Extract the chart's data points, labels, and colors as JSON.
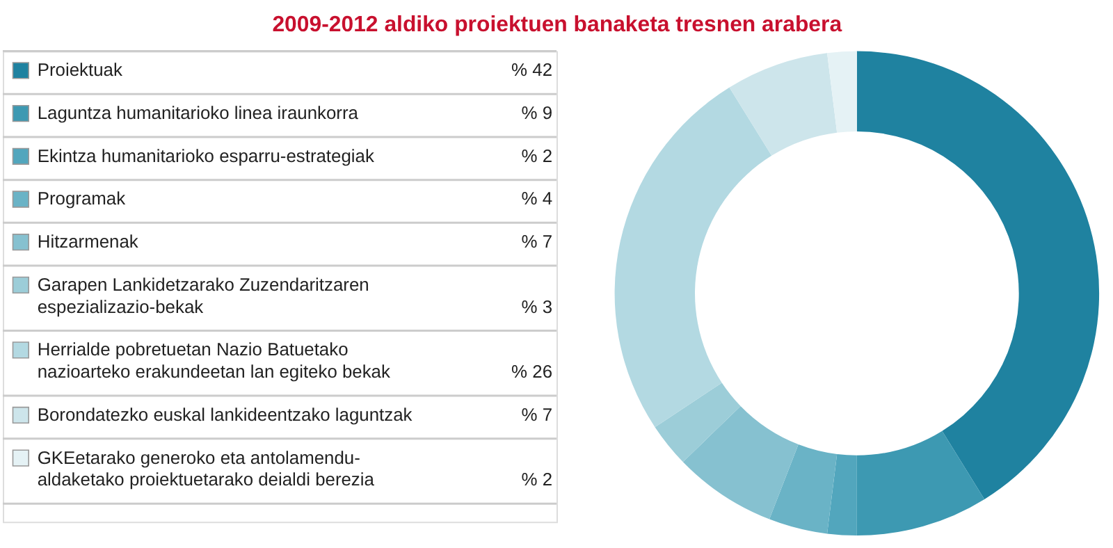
{
  "chart_data": {
    "type": "donut",
    "title": "2009-2012 aldiko proiektuen banaketa tresnen arabera",
    "categories": [
      "Proiektuak",
      "Laguntza humanitarioko linea iraunkorra",
      "Ekintza humanitarioko esparru-estrategiak",
      "Programak",
      "Hitzarmenak",
      "Garapen Lankidetzarako Zuzendaritzaren espezializazio-bekak",
      "Herrialde pobretuetan Nazio Batuetako nazioarteko erakundeetan lan egiteko bekak",
      "Borondatezko euskal lankideentzako laguntzak",
      "GKEetarako generoko eta antolamendu-aldaketako proiektuetarako deialdi berezia"
    ],
    "values": [
      42,
      9,
      2,
      4,
      7,
      3,
      26,
      7,
      2
    ],
    "value_labels": [
      "% 42",
      "% 9",
      "% 2",
      "% 4",
      "% 7",
      "% 3",
      "% 26",
      "% 7",
      "% 2"
    ],
    "colors": [
      "#1f82a0",
      "#3d99b2",
      "#52a6bd",
      "#6ab3c6",
      "#86c1d0",
      "#9ccdd8",
      "#b3d9e2",
      "#cde5eb",
      "#e5f2f5"
    ],
    "legend": "left"
  }
}
